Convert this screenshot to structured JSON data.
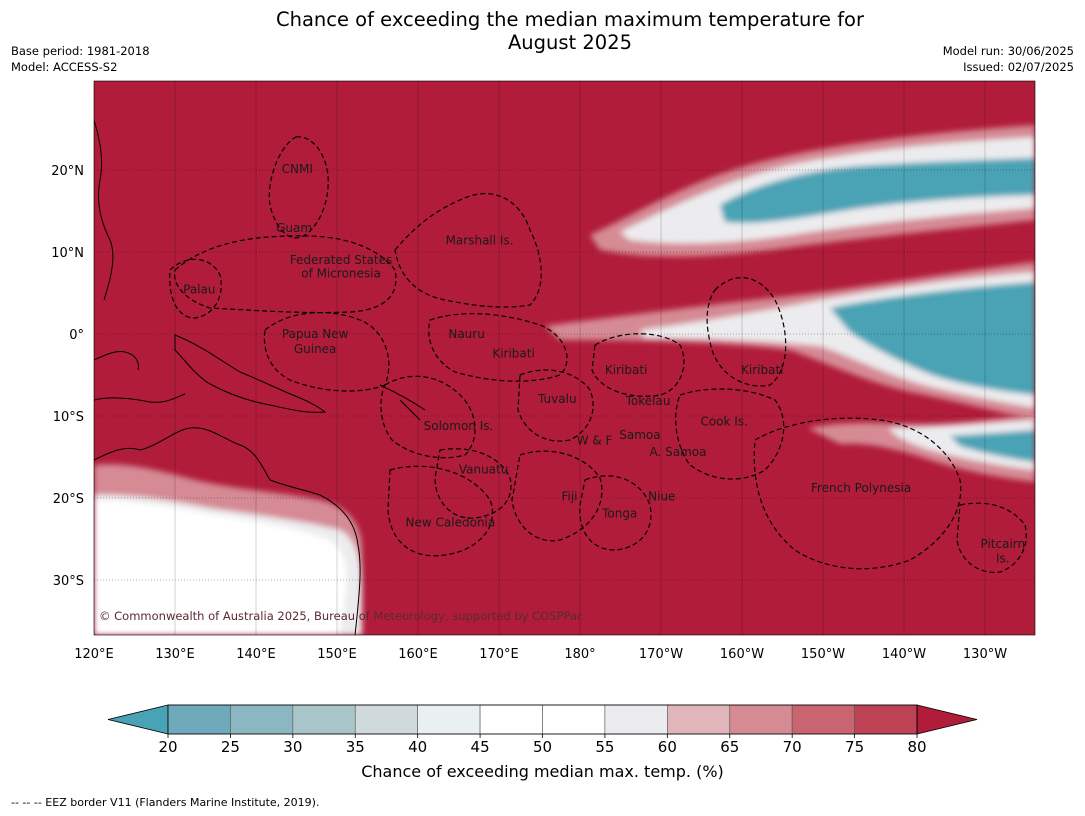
{
  "title": {
    "line1": "Chance of exceeding the median maximum temperature for",
    "line2": "August 2025"
  },
  "meta": {
    "base_period": "Base period: 1981-2018",
    "model": "Model: ACCESS-S2",
    "model_run": "Model run: 30/06/2025",
    "issued": "Issued: 02/07/2025"
  },
  "map": {
    "lon_ticks": [
      "120°E",
      "130°E",
      "140°E",
      "150°E",
      "160°E",
      "170°E",
      "180°",
      "170°W",
      "160°W",
      "150°W",
      "140°W",
      "130°W"
    ],
    "lat_ticks": [
      "20°N",
      "10°N",
      "0°",
      "10°S",
      "20°S",
      "30°S"
    ],
    "region_labels": [
      {
        "text": "CNMI",
        "lon": 145.1,
        "lat": 20.1
      },
      {
        "text": "Guam",
        "lon": 144.7,
        "lat": 12.9
      },
      {
        "text": "Marshall Is.",
        "lon": 167.6,
        "lat": 11.4
      },
      {
        "text": "Federated States",
        "lon": 150.5,
        "lat": 9.0
      },
      {
        "text": "of Micronesia",
        "lon": 150.5,
        "lat": 7.4
      },
      {
        "text": "Palau",
        "lon": 133.0,
        "lat": 5.4
      },
      {
        "text": "Papua New",
        "lon": 147.3,
        "lat": 0.0
      },
      {
        "text": "Guinea",
        "lon": 147.3,
        "lat": -1.8
      },
      {
        "text": "Nauru",
        "lon": 166.0,
        "lat": 0.0
      },
      {
        "text": "Kiribati",
        "lon": 171.8,
        "lat": -2.4
      },
      {
        "text": "Kiribati",
        "lon": -174.3,
        "lat": -4.4
      },
      {
        "text": "Kiribati",
        "lon": -157.5,
        "lat": -4.4
      },
      {
        "text": "Tuvalu",
        "lon": 177.2,
        "lat": -7.9
      },
      {
        "text": "Tokelau",
        "lon": -171.6,
        "lat": -8.2
      },
      {
        "text": "Cook Is.",
        "lon": -162.2,
        "lat": -10.7
      },
      {
        "text": "Solomon Is.",
        "lon": 165.0,
        "lat": -11.2
      },
      {
        "text": "Samoa",
        "lon": -172.6,
        "lat": -12.3
      },
      {
        "text": "W & F",
        "lon": -178.2,
        "lat": -13.0
      },
      {
        "text": "A. Samoa",
        "lon": -167.9,
        "lat": -14.4
      },
      {
        "text": "Vanuatu",
        "lon": 168.1,
        "lat": -16.5
      },
      {
        "text": "Fiji",
        "lon": 178.7,
        "lat": -19.8
      },
      {
        "text": "Niue",
        "lon": -169.9,
        "lat": -19.8
      },
      {
        "text": "Tonga",
        "lon": -175.1,
        "lat": -21.9
      },
      {
        "text": "French Polynesia",
        "lon": -145.3,
        "lat": -18.8
      },
      {
        "text": "New Caledonia",
        "lon": 164.0,
        "lat": -23.0
      },
      {
        "text": "Pitcairn",
        "lon": -127.8,
        "lat": -25.6
      },
      {
        "text": "Is.",
        "lon": -127.8,
        "lat": -27.4
      }
    ],
    "copyright": "© Commonwealth of Australia 2025, Bureau of Meteorology, supported by COSPPac"
  },
  "colorbar": {
    "ticks": [
      "20",
      "25",
      "30",
      "35",
      "40",
      "45",
      "50",
      "55",
      "60",
      "65",
      "70",
      "75",
      "80"
    ],
    "colors": [
      "#4aa3b5",
      "#6eaabb",
      "#8ab7c1",
      "#a8c5c9",
      "#d0d9db",
      "#e9f0f1",
      "#ffffff",
      "#ffffff",
      "#ececee",
      "#e0b6bb",
      "#d58a94",
      "#c96470",
      "#bd4354",
      "#b01c3a"
    ],
    "label": "Chance of exceeding median max. temp. (%)"
  },
  "footnote": "--  --  -- EEZ border V11 (Flanders Marine Institute, 2019)."
}
